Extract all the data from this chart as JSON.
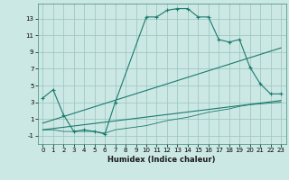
{
  "xlabel": "Humidex (Indice chaleur)",
  "bg_color": "#cce8e4",
  "grid_color": "#a0c8c4",
  "line_color": "#1a7a6e",
  "xlim": [
    -0.5,
    23.5
  ],
  "ylim": [
    -2.0,
    14.8
  ],
  "xticks": [
    0,
    1,
    2,
    3,
    4,
    5,
    6,
    7,
    8,
    9,
    10,
    11,
    12,
    13,
    14,
    15,
    16,
    17,
    18,
    19,
    20,
    21,
    22,
    23
  ],
  "yticks": [
    -1,
    1,
    3,
    5,
    7,
    9,
    11,
    13
  ],
  "series1_x": [
    0,
    1,
    2,
    3,
    4,
    5,
    6,
    7,
    10,
    11,
    12,
    13,
    14,
    15,
    16,
    17,
    18,
    19,
    20,
    21,
    22,
    23
  ],
  "series1_y": [
    3.5,
    4.5,
    1.5,
    -0.5,
    -0.3,
    -0.5,
    -0.8,
    3.0,
    13.2,
    13.2,
    14.0,
    14.2,
    14.2,
    13.2,
    13.2,
    10.5,
    10.2,
    10.5,
    7.2,
    5.2,
    4.0,
    4.0
  ],
  "series2_x": [
    0,
    23
  ],
  "series2_y": [
    0.5,
    9.5
  ],
  "series3_x": [
    0,
    23
  ],
  "series3_y": [
    -0.3,
    3.2
  ],
  "series4_x": [
    0,
    1,
    2,
    3,
    4,
    5,
    6,
    7,
    10,
    11,
    12,
    13,
    14,
    15,
    16,
    17,
    18,
    19,
    20,
    21,
    22,
    23
  ],
  "series4_y": [
    -0.3,
    -0.3,
    -0.5,
    -0.5,
    -0.5,
    -0.5,
    -0.7,
    -0.3,
    0.2,
    0.5,
    0.8,
    1.0,
    1.2,
    1.5,
    1.8,
    2.0,
    2.2,
    2.5,
    2.7,
    2.8,
    2.9,
    3.0
  ],
  "xlabel_fontsize": 6.0,
  "tick_fontsize": 5.0
}
